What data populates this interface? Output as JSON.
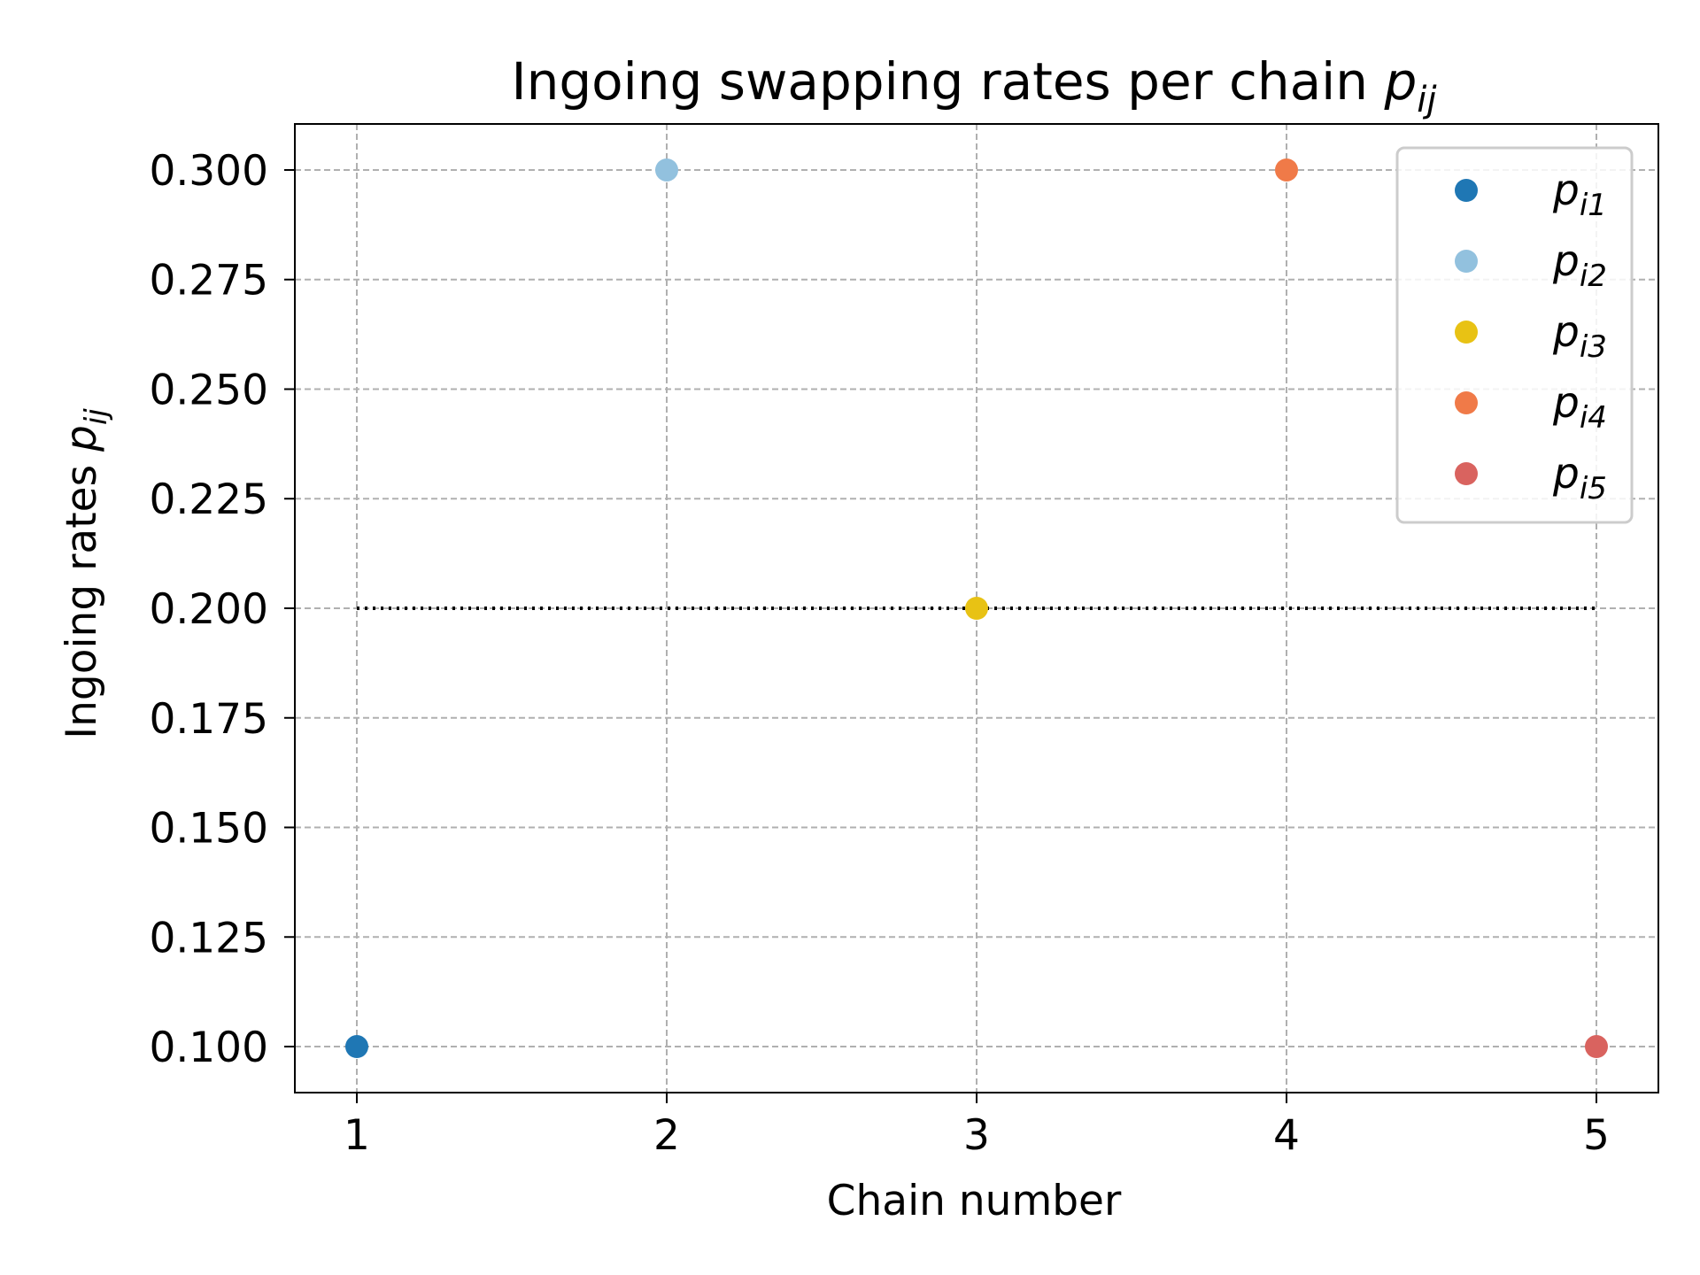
{
  "chart_data": {
    "type": "scatter",
    "title": "Ingoing swapping rates per chain ",
    "title_math": {
      "base": "p",
      "sub": "ij"
    },
    "xlabel": "Chain number",
    "ylabel": "Ingoing rates ",
    "ylabel_math": {
      "base": "p",
      "sub": "ij"
    },
    "xlim": [
      0.8,
      5.2
    ],
    "ylim": [
      0.0895,
      0.3105
    ],
    "xticks": [
      1,
      2,
      3,
      4,
      5
    ],
    "xtick_labels": [
      "1",
      "2",
      "3",
      "4",
      "5"
    ],
    "yticks": [
      0.1,
      0.125,
      0.15,
      0.175,
      0.2,
      0.225,
      0.25,
      0.275,
      0.3
    ],
    "ytick_labels": [
      "0.100",
      "0.125",
      "0.150",
      "0.175",
      "0.200",
      "0.225",
      "0.250",
      "0.275",
      "0.300"
    ],
    "grid": true,
    "grid_style": "dashed",
    "legend_placement": "upper right",
    "series": [
      {
        "name": "p_i1",
        "label_base": "p",
        "label_sub": "i1",
        "color": "#1f77b4",
        "points": [
          {
            "x": 1,
            "y": 0.1
          }
        ]
      },
      {
        "name": "p_i2",
        "label_base": "p",
        "label_sub": "i2",
        "color": "#92c1de",
        "points": [
          {
            "x": 2,
            "y": 0.3
          }
        ]
      },
      {
        "name": "p_i3",
        "label_base": "p",
        "label_sub": "i3",
        "color": "#e8c214",
        "points": [
          {
            "x": 3,
            "y": 0.2
          }
        ]
      },
      {
        "name": "p_i4",
        "label_base": "p",
        "label_sub": "i4",
        "color": "#f07a48",
        "points": [
          {
            "x": 4,
            "y": 0.3
          }
        ]
      },
      {
        "name": "p_i5",
        "label_base": "p",
        "label_sub": "i5",
        "color": "#d9635f",
        "points": [
          {
            "x": 5,
            "y": 0.1
          }
        ]
      }
    ],
    "reference_line": {
      "y": 0.2,
      "x_from": 1,
      "x_to": 5,
      "style": "dotted",
      "color": "#000000"
    }
  }
}
